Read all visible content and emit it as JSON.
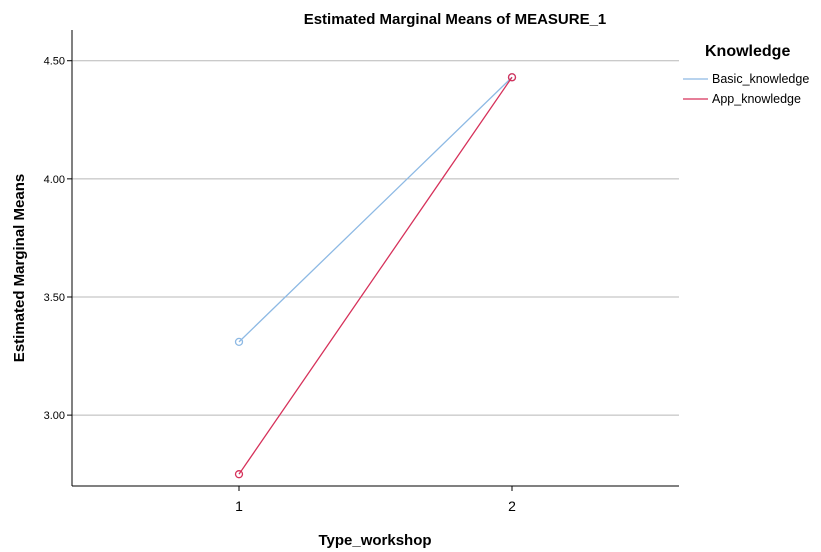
{
  "chart_data": {
    "type": "line",
    "title": "Estimated Marginal Means of MEASURE_1",
    "xlabel": "Type_workshop",
    "ylabel": "Estimated Marginal Means",
    "categories": [
      "1",
      "2"
    ],
    "ylim": [
      2.7,
      4.63
    ],
    "yticks": [
      3.0,
      3.5,
      4.0,
      4.5
    ],
    "ytick_labels": [
      "3.00",
      "3.50",
      "4.00",
      "4.50"
    ],
    "grid": "horizontal",
    "legend": {
      "title": "Knowledge",
      "position": "right"
    },
    "series": [
      {
        "name": "Basic_knowledge",
        "values": [
          3.31,
          4.43
        ],
        "color": "#8db9e4"
      },
      {
        "name": "App_knowledge",
        "values": [
          2.75,
          4.43
        ],
        "color": "#d6315a"
      }
    ]
  }
}
